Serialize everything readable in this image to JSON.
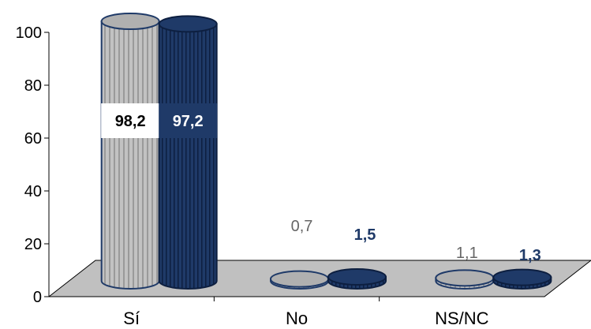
{
  "chart_data": {
    "type": "bar",
    "categories": [
      "Sí",
      "No",
      "NS/NC"
    ],
    "series": [
      {
        "values": [
          98.2,
          0.7,
          1.1
        ],
        "labels": [
          "98,2",
          "0,7",
          "1,1"
        ],
        "color": "#b5b5b5"
      },
      {
        "values": [
          97.2,
          1.5,
          1.3
        ],
        "labels": [
          "97,2",
          "1,5",
          "1,3"
        ],
        "color": "#1f3a68"
      }
    ],
    "y_ticks": [
      "0",
      "20",
      "40",
      "60",
      "80",
      "100"
    ],
    "ylim": [
      0,
      100
    ],
    "style": "3d-cylinder",
    "grid": false,
    "legend": "none",
    "title": "",
    "xlabel": "",
    "ylabel": ""
  }
}
